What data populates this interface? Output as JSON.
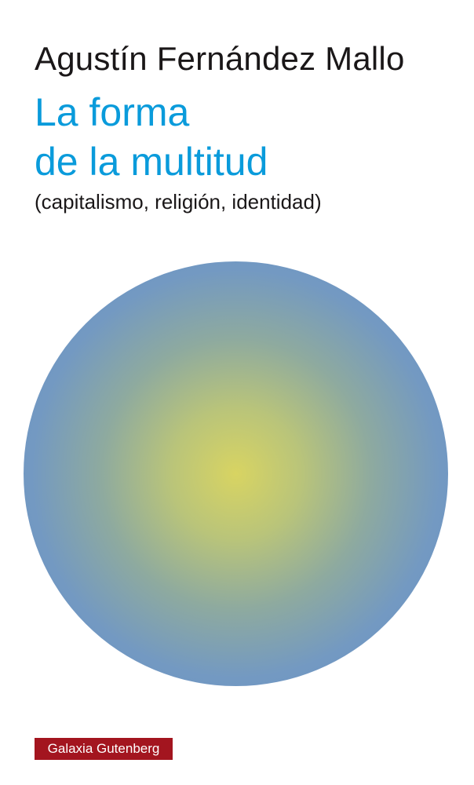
{
  "cover": {
    "author": "Agustín Fernández Mallo",
    "title_line1": "La forma",
    "title_line2": "de la multitud",
    "subtitle": "(capitalismo, religión, identidad)",
    "publisher": "Galaxia Gutenberg"
  },
  "colors": {
    "title": "#0a9bdb",
    "circle_center": "#d8d462",
    "circle_edge": "#6b93c9",
    "publisher_badge": "#a3151f"
  }
}
